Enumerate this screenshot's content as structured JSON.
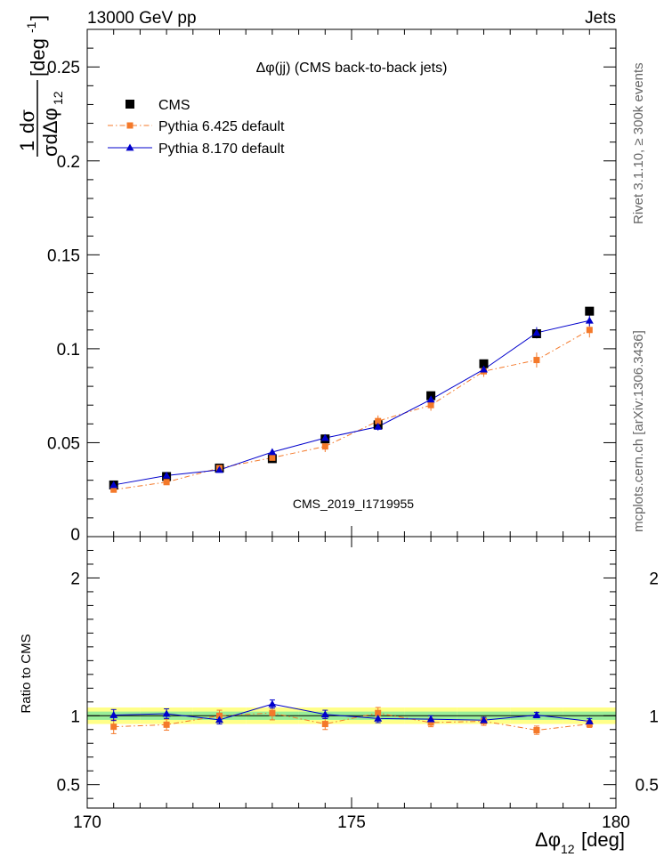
{
  "header": {
    "left": "13000 GeV pp",
    "right": "Jets"
  },
  "side_labels": {
    "rivet": "Rivet 3.1.10, ≥ 300k events",
    "mcplots": "mcplots.cern.ch [arXiv:1306.3436]"
  },
  "watermark": "CMS_2019_I1719955",
  "chart_data": [
    {
      "type": "scatter",
      "panel": "main",
      "title": "Δφ(jj) (CMS back-to-back jets)",
      "ylabel": "1/σ dσ/dΔφ_12 [deg⁻¹]",
      "xlabel": "Δφ_12 [deg]",
      "xlim": [
        170,
        180
      ],
      "ylim": [
        0,
        0.27
      ],
      "x_ticks": [
        "170",
        "175",
        "180"
      ],
      "y_ticks": [
        "0",
        "0.05",
        "0.1",
        "0.15",
        "0.2",
        "0.25"
      ],
      "legend_position": "top-left",
      "x": [
        170.5,
        171.5,
        172.5,
        173.5,
        174.5,
        175.5,
        176.5,
        177.5,
        178.5,
        179.5
      ],
      "series": [
        {
          "name": "CMS",
          "marker": "square",
          "color": "#000000",
          "values": [
            0.0275,
            0.032,
            0.0365,
            0.0415,
            0.052,
            0.0595,
            0.075,
            0.092,
            0.108,
            0.12
          ]
        },
        {
          "name": "Pythia 6.425 default",
          "marker": "square",
          "line": "dash-dot",
          "color": "#f4792a",
          "values": [
            0.025,
            0.029,
            0.0365,
            0.042,
            0.048,
            0.0615,
            0.07,
            0.088,
            0.094,
            0.11
          ],
          "errors": [
            0.0015,
            0.0015,
            0.0015,
            0.002,
            0.003,
            0.003,
            0.003,
            0.003,
            0.004,
            0.004
          ]
        },
        {
          "name": "Pythia 8.170 default",
          "marker": "triangle",
          "line": "solid",
          "color": "#0000cc",
          "values": [
            0.0275,
            0.0325,
            0.0355,
            0.045,
            0.0525,
            0.0585,
            0.073,
            0.089,
            0.1085,
            0.115
          ],
          "errors": [
            0.001,
            0.001,
            0.001,
            0.0015,
            0.002,
            0.002,
            0.002,
            0.0025,
            0.003,
            0.003
          ]
        }
      ]
    },
    {
      "type": "scatter",
      "panel": "ratio",
      "ylabel": "Ratio to CMS",
      "xlim": [
        170,
        180
      ],
      "ylim": [
        0.33,
        2.3
      ],
      "x_ticks": [
        "170",
        "175",
        "180"
      ],
      "y_ticks": [
        "0.5",
        "1",
        "2"
      ],
      "band_green": [
        0.97,
        1.03
      ],
      "band_yellow": [
        0.94,
        1.06
      ],
      "x": [
        170.5,
        171.5,
        172.5,
        173.5,
        174.5,
        175.5,
        176.5,
        177.5,
        178.5,
        179.5
      ],
      "series": [
        {
          "name": "Pythia 6.425 default",
          "color": "#f4792a",
          "values": [
            0.92,
            0.935,
            1.0,
            1.02,
            0.94,
            1.02,
            0.95,
            0.96,
            0.895,
            0.94
          ],
          "errors": [
            0.05,
            0.04,
            0.04,
            0.05,
            0.04,
            0.04,
            0.03,
            0.03,
            0.03,
            0.025
          ]
        },
        {
          "name": "Pythia 8.170 default",
          "color": "#0000cc",
          "values": [
            1.005,
            1.015,
            0.97,
            1.085,
            1.01,
            0.98,
            0.975,
            0.968,
            1.005,
            0.96
          ],
          "errors": [
            0.04,
            0.035,
            0.03,
            0.03,
            0.03,
            0.03,
            0.025,
            0.02,
            0.02,
            0.02
          ]
        }
      ]
    }
  ]
}
